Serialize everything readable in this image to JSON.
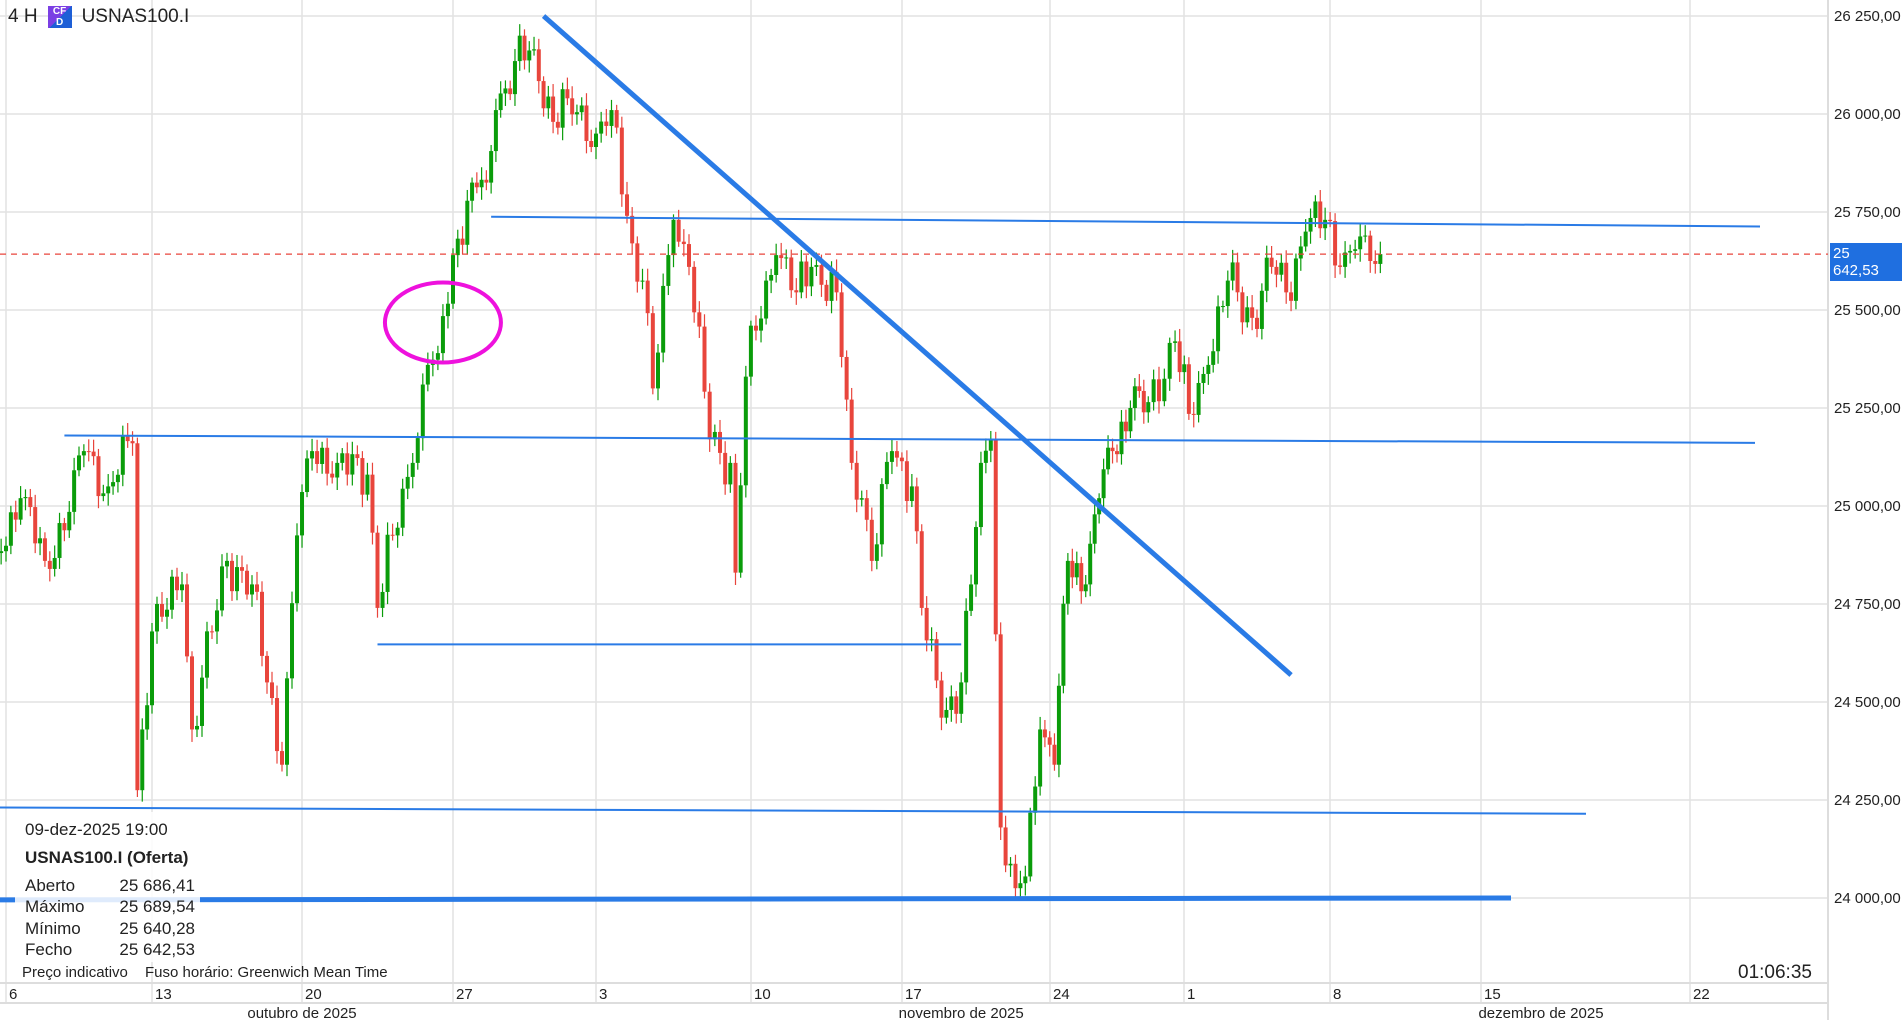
{
  "header": {
    "interval": "4 H",
    "badge": "CFD",
    "symbol": "USNAS100.I"
  },
  "info_panel": {
    "datetime": "09-dez-2025 19:00",
    "title": "USNAS100.I (Oferta)",
    "rows": [
      {
        "label": "Aberto",
        "value": "25 686,41"
      },
      {
        "label": "Máximo",
        "value": "25 689,54"
      },
      {
        "label": "Mínimo",
        "value": "25 640,28"
      },
      {
        "label": "Fecho",
        "value": "25 642,53"
      }
    ]
  },
  "footer": {
    "indicative": "Preço indicativo",
    "timezone": "Fuso horário: Greenwich Mean Time",
    "clock": "01:06:35"
  },
  "current_price_label": "25 642,53",
  "colors": {
    "up": "#0a9c0a",
    "down": "#e8453c",
    "drawing": "#2a7be6",
    "ellipse": "#ee11dd",
    "price_line": "#e8453c",
    "label_bg": "#1f6fe0"
  },
  "chart_data": {
    "type": "candlestick",
    "interval": "4 H",
    "grid": true,
    "current_price": 25642.53,
    "ylim": [
      23750,
      26300
    ],
    "y_ticks": [
      {
        "value": 26250,
        "label": "26 250,00"
      },
      {
        "value": 26000,
        "label": "26 000,00"
      },
      {
        "value": 25750,
        "label": "25 750,00"
      },
      {
        "value": 25500,
        "label": "25 500,00"
      },
      {
        "value": 25250,
        "label": "25 250,00"
      },
      {
        "value": 25000,
        "label": "25 000,00"
      },
      {
        "value": 24750,
        "label": "24 750,00"
      },
      {
        "value": 24500,
        "label": "24 500,00"
      },
      {
        "value": 24250,
        "label": "24 250,00"
      },
      {
        "value": 24000,
        "label": "24 000,00"
      }
    ],
    "x_ticks": [
      {
        "date": "2025-10-06",
        "label": "6"
      },
      {
        "date": "2025-10-13",
        "label": "13"
      },
      {
        "date": "2025-10-20",
        "label": "20"
      },
      {
        "date": "2025-10-27",
        "label": "27"
      },
      {
        "date": "2025-11-03",
        "label": "3"
      },
      {
        "date": "2025-11-10",
        "label": "10"
      },
      {
        "date": "2025-11-17",
        "label": "17"
      },
      {
        "date": "2025-11-24",
        "label": "24"
      },
      {
        "date": "2025-12-01",
        "label": "1"
      },
      {
        "date": "2025-12-08",
        "label": "8"
      },
      {
        "date": "2025-12-15",
        "label": "15"
      },
      {
        "date": "2025-12-22",
        "label": "22"
      }
    ],
    "months": [
      {
        "date": "2025-10-20",
        "label": "outubro de 2025"
      },
      {
        "date": "2025-11-19",
        "label": "novembro de 2025"
      },
      {
        "date": "2025-12-17",
        "label": "dezembro de 2025"
      }
    ],
    "closes": [
      [
        "2025-10-03 16:00",
        24880
      ],
      [
        "2025-10-06 12:00",
        25020
      ],
      [
        "2025-10-07 08:00",
        24860
      ],
      [
        "2025-10-08 04:00",
        24985
      ],
      [
        "2025-10-08 16:00",
        25140
      ],
      [
        "2025-10-09 12:00",
        25050
      ],
      [
        "2025-10-10 08:00",
        25160
      ],
      [
        "2025-10-10 12:00",
        24275
      ],
      [
        "2025-10-10 16:00",
        24430
      ],
      [
        "2025-10-13 00:00",
        24680
      ],
      [
        "2025-10-14 00:00",
        24800
      ],
      [
        "2025-10-14 08:00",
        24430
      ],
      [
        "2025-10-15 00:00",
        24680
      ],
      [
        "2025-10-15 12:00",
        24860
      ],
      [
        "2025-10-16 08:00",
        24800
      ],
      [
        "2025-10-16 20:00",
        24550
      ],
      [
        "2025-10-17 08:00",
        24340
      ],
      [
        "2025-10-17 20:00",
        24925
      ],
      [
        "2025-10-20 08:00",
        25140
      ],
      [
        "2025-10-21 04:00",
        25110
      ],
      [
        "2025-10-22 04:00",
        25080
      ],
      [
        "2025-10-22 12:00",
        24740
      ],
      [
        "2025-10-23 00:00",
        24925
      ],
      [
        "2025-10-23 16:00",
        25110
      ],
      [
        "2025-10-24 04:00",
        25360
      ],
      [
        "2025-10-24 12:00",
        25390
      ],
      [
        "2025-10-27 00:00",
        25640
      ],
      [
        "2025-10-27 16:00",
        25825
      ],
      [
        "2025-10-28 04:00",
        25825
      ],
      [
        "2025-10-28 12:00",
        26010
      ],
      [
        "2025-10-29 04:00",
        26135
      ],
      [
        "2025-10-29 20:00",
        26165
      ],
      [
        "2025-10-30 12:00",
        25980
      ],
      [
        "2025-10-31 00:00",
        26040
      ],
      [
        "2025-11-03 00:00",
        25950
      ],
      [
        "2025-11-03 12:00",
        26010
      ],
      [
        "2025-11-04 04:00",
        25670
      ],
      [
        "2025-11-04 12:00",
        25575
      ],
      [
        "2025-11-04 20:00",
        25300
      ],
      [
        "2025-11-05 12:00",
        25730
      ],
      [
        "2025-11-06 00:00",
        25610
      ],
      [
        "2025-11-06 16:00",
        25170
      ],
      [
        "2025-11-07 08:00",
        25110
      ],
      [
        "2025-11-07 12:00",
        24830
      ],
      [
        "2025-11-07 20:00",
        25330
      ],
      [
        "2025-11-10 12:00",
        25575
      ],
      [
        "2025-11-10 20:00",
        25640
      ],
      [
        "2025-11-11 12:00",
        25545
      ],
      [
        "2025-11-12 00:00",
        25610
      ],
      [
        "2025-11-12 20:00",
        25545
      ],
      [
        "2025-11-13 08:00",
        25110
      ],
      [
        "2025-11-13 16:00",
        25020
      ],
      [
        "2025-11-14 00:00",
        24860
      ],
      [
        "2025-11-14 16:00",
        25140
      ],
      [
        "2025-11-17 08:00",
        25050
      ],
      [
        "2025-11-17 16:00",
        24740
      ],
      [
        "2025-11-18 08:00",
        24460
      ],
      [
        "2025-11-19 00:00",
        24550
      ],
      [
        "2025-11-19 08:00",
        24800
      ],
      [
        "2025-11-19 16:00",
        25110
      ],
      [
        "2025-11-20 00:00",
        25170
      ],
      [
        "2025-11-20 08:00",
        24180
      ],
      [
        "2025-11-20 20:00",
        24025
      ],
      [
        "2025-11-21 04:00",
        24055
      ],
      [
        "2025-11-21 16:00",
        24430
      ],
      [
        "2025-11-24 04:00",
        24340
      ],
      [
        "2025-11-24 16:00",
        24860
      ],
      [
        "2025-11-25 08:00",
        24800
      ],
      [
        "2025-11-25 20:00",
        25020
      ],
      [
        "2025-11-26 08:00",
        25140
      ],
      [
        "2025-11-27 00:00",
        25250
      ],
      [
        "2025-11-27 16:00",
        25265
      ],
      [
        "2025-11-28 16:00",
        25420
      ],
      [
        "2025-12-01 04:00",
        25235
      ],
      [
        "2025-12-01 20:00",
        25360
      ],
      [
        "2025-12-02 12:00",
        25575
      ],
      [
        "2025-12-03 08:00",
        25480
      ],
      [
        "2025-12-04 00:00",
        25610
      ],
      [
        "2025-12-04 12:00",
        25545
      ],
      [
        "2025-12-05 04:00",
        25700
      ],
      [
        "2025-12-05 20:00",
        25730
      ],
      [
        "2025-12-08 08:00",
        25610
      ],
      [
        "2025-12-08 20:00",
        25655
      ],
      [
        "2025-12-09 08:00",
        25625
      ],
      [
        "2025-12-09 16:00",
        25642.53
      ]
    ],
    "drawings": [
      {
        "kind": "trendline",
        "from": [
          "2025-10-30 04:00",
          26250
        ],
        "to": [
          "2025-12-04 16:00",
          24569
        ],
        "thick": true
      },
      {
        "kind": "trendline",
        "from": [
          "2025-10-28 08:00",
          25738
        ],
        "to": [
          "2025-12-24 08:00",
          25713
        ],
        "thick": false
      },
      {
        "kind": "trendline",
        "from": [
          "2025-10-08 00:00",
          25180
        ],
        "to": [
          "2025-12-24 04:00",
          25161
        ],
        "thick": false
      },
      {
        "kind": "trendline",
        "from": [
          "2025-10-22 12:00",
          24647
        ],
        "to": [
          "2025-11-19 00:00",
          24647
        ],
        "thick": false
      },
      {
        "kind": "trendline",
        "from": [
          "2025-10-03 00:00",
          24231
        ],
        "to": [
          "2025-12-18 12:00",
          24215
        ],
        "thick": false
      },
      {
        "kind": "trendline",
        "from": [
          "2025-10-03 00:00",
          23995
        ],
        "to": [
          "2025-12-16 00:00",
          24000
        ],
        "thick": true
      },
      {
        "kind": "ellipse",
        "center": [
          "2025-10-24 16:00",
          25468
        ]
      }
    ]
  }
}
